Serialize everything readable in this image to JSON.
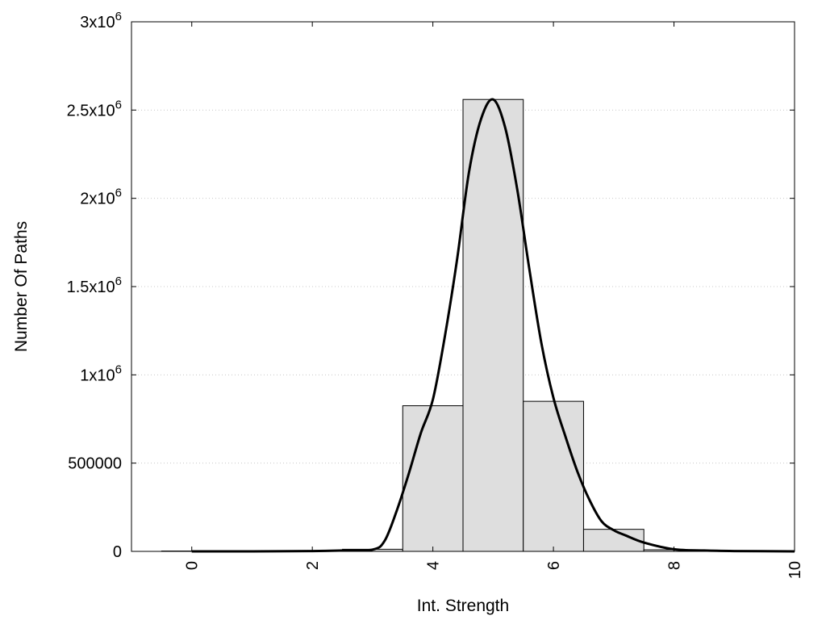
{
  "chart_data": {
    "type": "bar",
    "title": "",
    "xlabel": "Int. Strength",
    "ylabel": "Number Of Paths",
    "xlim": [
      -1,
      10
    ],
    "ylim": [
      0,
      3000000
    ],
    "grid": {
      "horizontal": true,
      "style": "dotted"
    },
    "x_ticks": [
      {
        "value": 0,
        "label": "0"
      },
      {
        "value": 2,
        "label": "2"
      },
      {
        "value": 4,
        "label": "4"
      },
      {
        "value": 6,
        "label": "6"
      },
      {
        "value": 8,
        "label": "8"
      },
      {
        "value": 10,
        "label": "10"
      }
    ],
    "y_ticks": [
      {
        "value": 0,
        "mant": "0",
        "exp": ""
      },
      {
        "value": 500000,
        "mant": "500000",
        "exp": ""
      },
      {
        "value": 1000000,
        "mant": "1x10",
        "exp": "6"
      },
      {
        "value": 1500000,
        "mant": "1.5x10",
        "exp": "6"
      },
      {
        "value": 2000000,
        "mant": "2x10",
        "exp": "6"
      },
      {
        "value": 2500000,
        "mant": "2.5x10",
        "exp": "6"
      },
      {
        "value": 3000000,
        "mant": "3x10",
        "exp": "6"
      }
    ],
    "bars": {
      "centers": [
        0,
        1,
        2,
        3,
        4,
        5,
        6,
        7,
        8,
        9
      ],
      "width": 1,
      "values": [
        2000,
        2000,
        3000,
        12000,
        825000,
        2560000,
        850000,
        125000,
        9000,
        4000
      ]
    },
    "fit_curve": {
      "x": [
        0,
        1,
        2,
        2.5,
        3,
        3.2,
        3.4,
        3.6,
        3.8,
        4,
        4.2,
        4.4,
        4.6,
        4.8,
        5,
        5.2,
        5.4,
        5.6,
        5.8,
        6,
        6.2,
        6.4,
        6.6,
        6.8,
        7,
        7.2,
        7.5,
        8,
        8.5,
        9,
        10
      ],
      "y": [
        0,
        0,
        2000,
        5000,
        10000,
        60000,
        230000,
        440000,
        670000,
        860000,
        1220000,
        1650000,
        2150000,
        2450000,
        2560000,
        2400000,
        2050000,
        1600000,
        1180000,
        870000,
        650000,
        450000,
        290000,
        170000,
        120000,
        90000,
        50000,
        12000,
        5000,
        2000,
        0
      ]
    }
  }
}
